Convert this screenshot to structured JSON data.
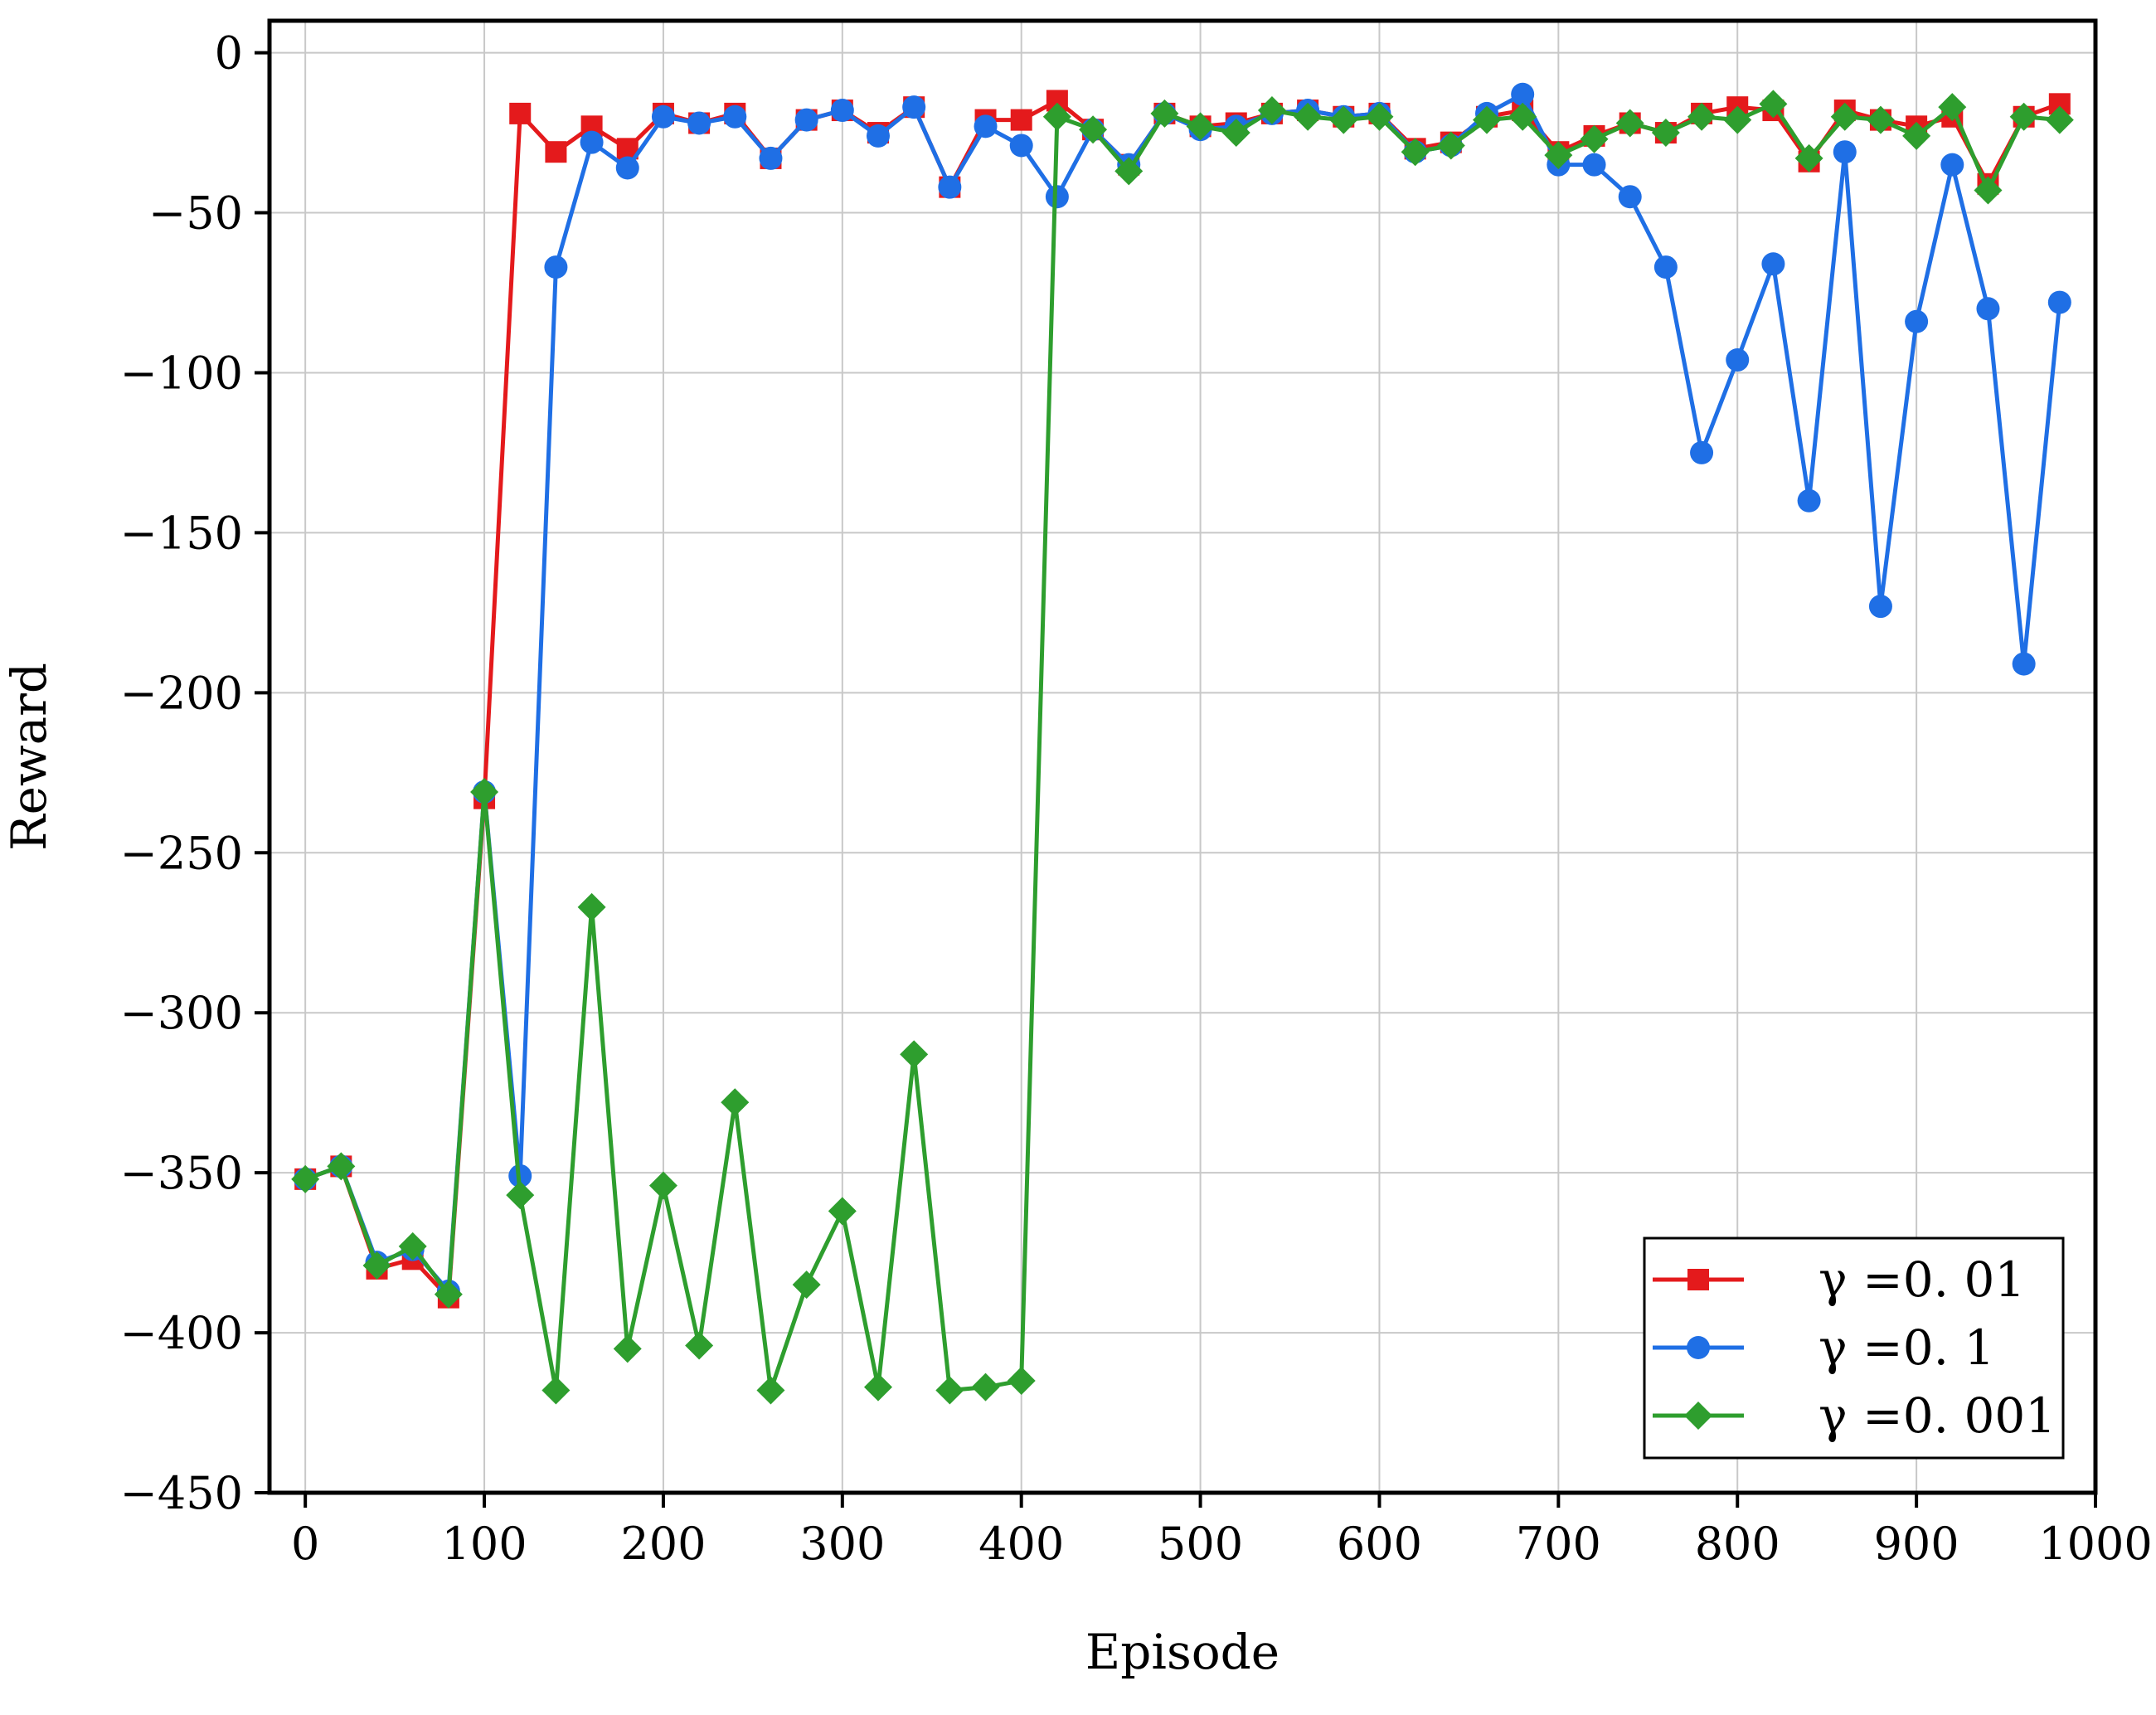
{
  "chart_data": {
    "type": "line",
    "xlabel": "Episode",
    "ylabel": "Reward",
    "xlim": [
      -20,
      1000
    ],
    "ylim": [
      -450,
      10
    ],
    "xticks": [
      0,
      100,
      200,
      300,
      400,
      500,
      600,
      700,
      800,
      900,
      1000
    ],
    "yticks": [
      0,
      -50,
      -100,
      -150,
      -200,
      -250,
      -300,
      -350,
      -400,
      -450
    ],
    "xtick_labels": [
      "0",
      "100",
      "200",
      "300",
      "400",
      "500",
      "600",
      "700",
      "800",
      "900",
      "1000"
    ],
    "ytick_labels": [
      "0",
      "−50",
      "−100",
      "−150",
      "−200",
      "−250",
      "−300",
      "−350",
      "−400",
      "−450"
    ],
    "grid": true,
    "legend_position": "bottom-right",
    "x": [
      0,
      20,
      40,
      60,
      80,
      100,
      120,
      140,
      160,
      180,
      200,
      220,
      240,
      260,
      280,
      300,
      320,
      340,
      360,
      380,
      400,
      420,
      440,
      460,
      480,
      500,
      520,
      540,
      560,
      580,
      600,
      620,
      640,
      660,
      680,
      700,
      720,
      740,
      760,
      780,
      800,
      820,
      840,
      860,
      880,
      900,
      920,
      940,
      960,
      980
    ],
    "series": [
      {
        "name": "γ =0. 01",
        "color": "#e41a1c",
        "marker": "square",
        "values": [
          -352,
          -348,
          -380,
          -377,
          -389,
          -233,
          -19,
          -31,
          -23,
          -30,
          -19,
          -22,
          -19,
          -33,
          -21,
          -18,
          -25,
          -17,
          -42,
          -21,
          -21,
          -15,
          -24,
          -35,
          -19,
          -23,
          -22,
          -19,
          -18,
          -20,
          -19,
          -30,
          -28,
          -20,
          -18,
          -31,
          -26,
          -22,
          -25,
          -19,
          -17,
          -18,
          -34,
          -18,
          -21,
          -23,
          -20,
          -41,
          -20,
          -16
        ]
      },
      {
        "name": "γ =0. 1",
        "color": "#1f6fe5",
        "marker": "circle",
        "values": [
          -352,
          -348,
          -378,
          -374,
          -387,
          -231,
          -351,
          -67,
          -28,
          -36,
          -20,
          -22,
          -20,
          -33,
          -21,
          -18,
          -26,
          -17,
          -42,
          -23,
          -29,
          -45,
          -24,
          -35,
          -19,
          -24,
          -23,
          -19,
          -18,
          -20,
          -19,
          -31,
          -29,
          -19,
          -13,
          -35,
          -35,
          -45,
          -67,
          -125,
          -96,
          -66,
          -140,
          -31,
          -173,
          -84,
          -35,
          -80,
          -191,
          -78
        ]
      },
      {
        "name": "γ =0. 001",
        "color": "#2e9e2e",
        "marker": "diamond",
        "values": [
          -352,
          -348,
          -379,
          -373,
          -388,
          -231,
          -357,
          -418,
          -267,
          -405,
          -354,
          -404,
          -328,
          -418,
          -385,
          -362,
          -417,
          -313,
          -418,
          -417,
          -415,
          -20,
          -24,
          -37,
          -19,
          -23,
          -25,
          -18,
          -20,
          -21,
          -20,
          -31,
          -29,
          -21,
          -20,
          -32,
          -27,
          -22,
          -25,
          -20,
          -21,
          -16,
          -33,
          -20,
          -21,
          -26,
          -17,
          -43,
          -20,
          -21
        ]
      }
    ]
  }
}
